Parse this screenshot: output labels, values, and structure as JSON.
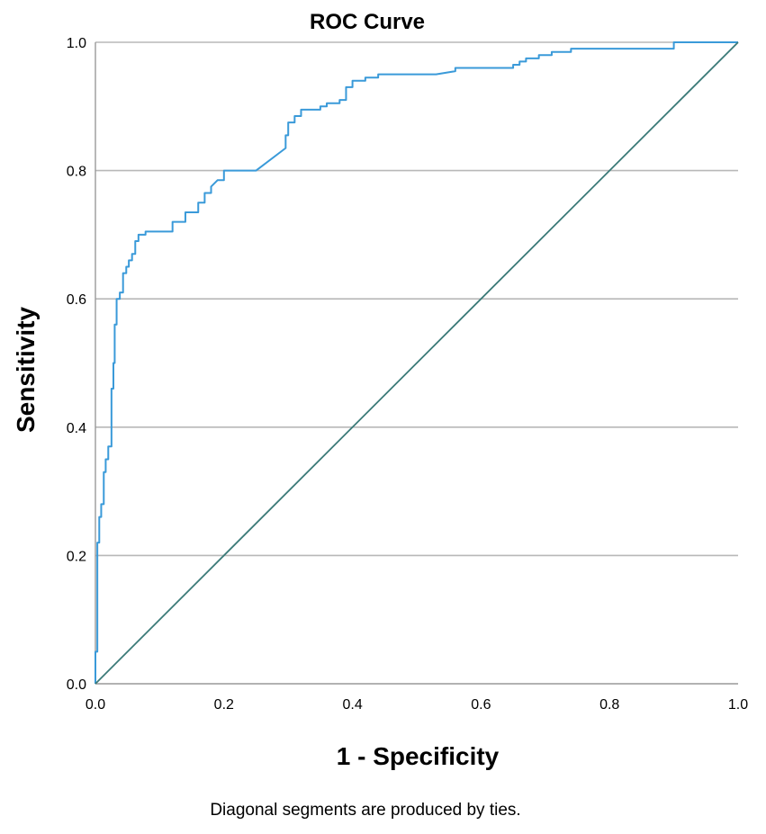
{
  "chart_data": {
    "type": "line",
    "title": "ROC Curve",
    "xlabel": "1 - Specificity",
    "ylabel": "Sensitivity",
    "footnote": "Diagonal segments are produced by ties.",
    "xlim": [
      0,
      1
    ],
    "ylim": [
      0,
      1
    ],
    "x_ticks": [
      "0.0",
      "0.2",
      "0.4",
      "0.6",
      "0.8",
      "1.0"
    ],
    "y_ticks": [
      "0.0",
      "0.2",
      "0.4",
      "0.6",
      "0.8",
      "1.0"
    ],
    "grid": "horizontal",
    "legend": "none",
    "colors": {
      "curve": "#3a9ad9",
      "reference": "#3b7a78",
      "grid": "#b8b8b8",
      "axis": "#999999"
    },
    "series": [
      {
        "role": "roc-curve",
        "x": [
          0.0,
          0.0,
          0.003,
          0.003,
          0.006,
          0.006,
          0.009,
          0.009,
          0.013,
          0.013,
          0.016,
          0.016,
          0.02,
          0.02,
          0.025,
          0.025,
          0.028,
          0.028,
          0.03,
          0.03,
          0.033,
          0.033,
          0.036,
          0.036,
          0.038,
          0.038,
          0.043,
          0.043,
          0.048,
          0.048,
          0.052,
          0.052,
          0.057,
          0.057,
          0.062,
          0.062,
          0.067,
          0.067,
          0.072,
          0.072,
          0.078,
          0.078,
          0.12,
          0.12,
          0.14,
          0.14,
          0.16,
          0.16,
          0.17,
          0.17,
          0.18,
          0.18,
          0.19,
          0.2,
          0.2,
          0.25,
          0.296,
          0.296,
          0.3,
          0.3,
          0.31,
          0.31,
          0.32,
          0.32,
          0.35,
          0.35,
          0.36,
          0.36,
          0.38,
          0.38,
          0.39,
          0.39,
          0.4,
          0.4,
          0.42,
          0.42,
          0.44,
          0.44,
          0.47,
          0.47,
          0.53,
          0.56,
          0.56,
          0.58,
          0.65,
          0.65,
          0.66,
          0.66,
          0.67,
          0.67,
          0.69,
          0.69,
          0.71,
          0.71,
          0.74,
          0.74,
          0.78,
          0.9,
          0.9,
          1.0
        ],
        "y": [
          0.0,
          0.05,
          0.05,
          0.22,
          0.22,
          0.26,
          0.26,
          0.28,
          0.28,
          0.33,
          0.33,
          0.35,
          0.35,
          0.37,
          0.37,
          0.46,
          0.46,
          0.5,
          0.5,
          0.56,
          0.56,
          0.6,
          0.6,
          0.6,
          0.6,
          0.61,
          0.61,
          0.64,
          0.64,
          0.65,
          0.65,
          0.66,
          0.66,
          0.67,
          0.67,
          0.69,
          0.69,
          0.7,
          0.7,
          0.7,
          0.7,
          0.705,
          0.705,
          0.72,
          0.72,
          0.735,
          0.735,
          0.75,
          0.75,
          0.765,
          0.765,
          0.775,
          0.785,
          0.785,
          0.8,
          0.8,
          0.835,
          0.855,
          0.855,
          0.875,
          0.875,
          0.885,
          0.885,
          0.895,
          0.895,
          0.9,
          0.9,
          0.905,
          0.905,
          0.91,
          0.91,
          0.93,
          0.93,
          0.94,
          0.94,
          0.945,
          0.945,
          0.95,
          0.95,
          0.95,
          0.95,
          0.955,
          0.96,
          0.96,
          0.96,
          0.965,
          0.965,
          0.97,
          0.97,
          0.975,
          0.975,
          0.98,
          0.98,
          0.985,
          0.985,
          0.99,
          0.99,
          0.99,
          1.0,
          1.0
        ]
      },
      {
        "role": "reference-line",
        "x": [
          0,
          1
        ],
        "y": [
          0,
          1
        ]
      }
    ]
  }
}
